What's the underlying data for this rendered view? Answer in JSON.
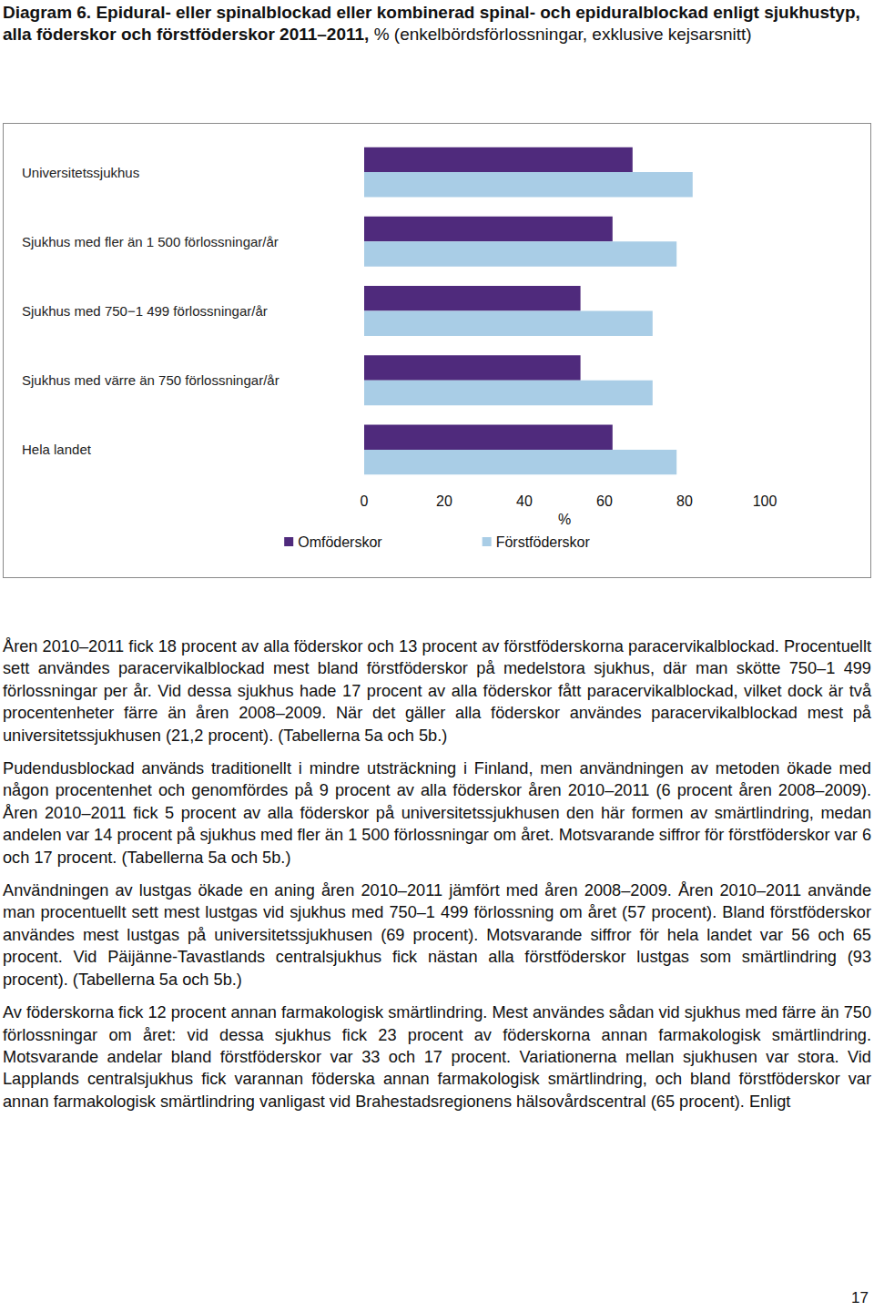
{
  "chart_data": {
    "type": "bar",
    "title": "Diagram 6. Epidural- eller spinalblockad eller kombinerad spinal- och epiduralblockad enligt sjukhustyp, alla föderskor och förstföderskor 2011–2011,",
    "subtitle": "% (enkelbördsförlossningar, exklusive kejsarsnitt)",
    "orientation": "horizontal",
    "categories": [
      "Universitetssjukhus",
      "Sjukhus med fler än 1 500 förlossningar/år",
      "Sjukhus med 750−1 499 förlossningar/år",
      "Sjukhus med värre än 750 förlossningar/år",
      "Hela landet"
    ],
    "series": [
      {
        "name": "Omföderskor",
        "color": "#4f2a7c",
        "values": [
          67,
          62,
          54,
          54,
          62
        ]
      },
      {
        "name": "Förstföderskor",
        "color": "#a9cde6",
        "values": [
          82,
          78,
          72,
          72,
          78
        ]
      }
    ],
    "xlabel": "%",
    "xlim": [
      0,
      100
    ],
    "xticks": [
      0,
      20,
      40,
      60,
      80,
      100
    ],
    "legend": "bottom",
    "grid": false
  },
  "paragraphs": [
    "Åren 2010–2011 fick 18 procent av alla föderskor och 13 procent av förstföderskorna paracervikalblockad. Procentuellt sett användes paracervikalblockad mest bland förstföderskor på medelstora sjukhus, där man skötte 750–1 499 förlossningar per år. Vid dessa sjukhus hade 17 procent av alla föderskor fått paracervikalblockad, vilket dock är två procentenheter färre än åren 2008–2009. När det gäller alla föderskor användes paracervikalblockad mest på universitetssjukhusen (21,2 procent). (Tabellerna 5a och 5b.)",
    "Pudendusblockad används traditionellt i mindre utsträckning i Finland, men användningen av metoden ökade med någon procentenhet och genomfördes på 9 procent av alla föderskor åren 2010–2011 (6 procent åren 2008–2009). Åren 2010–2011 fick 5 procent av alla föderskor på universitetssjukhusen den här formen av smärtlindring, medan andelen var 14 procent på sjukhus med fler än 1 500 förlossningar om året. Motsvarande siffror för förstföderskor var 6 och 17 procent. (Tabellerna 5a och 5b.)",
    "Användningen av lustgas ökade en aning åren 2010–2011 jämfört med åren 2008–2009. Åren 2010–2011 använde man procentuellt sett mest lustgas vid sjukhus med 750–1 499 förlossning om året (57 procent). Bland förstföderskor användes mest lustgas på universitetssjukhusen (69 procent). Motsvarande siffror för hela landet var 56 och 65 procent. Vid Päijänne-Tavastlands centralsjukhus fick nästan alla förstföderskor lustgas som smärtlindring (93 procent). (Tabellerna 5a och 5b.)",
    "Av föderskorna fick 12 procent annan farmakologisk smärtlindring. Mest användes sådan vid sjukhus med färre än 750 förlossningar om året: vid dessa sjukhus fick 23 procent av föderskorna annan farmakologisk smärtlindring. Motsvarande andelar bland förstföderskor var 33 och 17 procent. Variationerna mellan sjukhusen var stora. Vid Lapplands centralsjukhus fick varannan föderska annan farmakologisk smärtlindring, och bland förstföderskor var annan farmakologisk smärtlindring vanligast vid Brahestadsregionens hälsovårdscentral (65 procent). Enligt"
  ],
  "page_number": 17
}
